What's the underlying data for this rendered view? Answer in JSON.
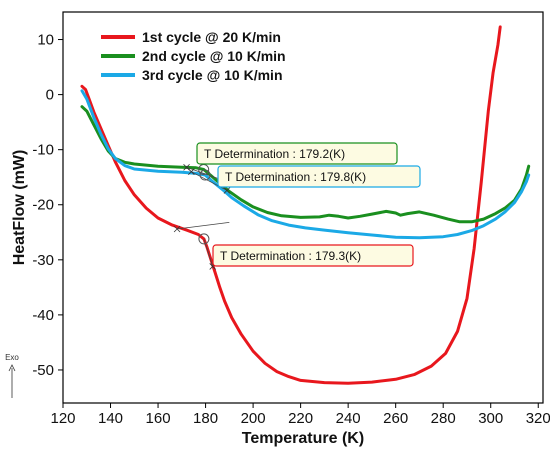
{
  "chart_data": {
    "type": "line",
    "xlabel": "Temperature (K)",
    "ylabel": "HeatFlow (mW)",
    "xlim": [
      120,
      322
    ],
    "ylim": [
      -56,
      15
    ],
    "x_ticks": [
      120,
      140,
      160,
      180,
      200,
      220,
      240,
      260,
      280,
      300,
      320
    ],
    "y_ticks": [
      10,
      0,
      -10,
      -20,
      -30,
      -40,
      -50
    ],
    "grid": false,
    "legend_position": "top-left",
    "exo_label": "Exo",
    "series": [
      {
        "name": "1st cycle @ 20 K/min",
        "color": "#e8171d",
        "points": [
          [
            128,
            1.5
          ],
          [
            129.5,
            0.9
          ],
          [
            131,
            -0.8
          ],
          [
            133,
            -3.2
          ],
          [
            136,
            -6.2
          ],
          [
            139,
            -9.2
          ],
          [
            142,
            -12.2
          ],
          [
            146,
            -15.6
          ],
          [
            150,
            -18.2
          ],
          [
            155,
            -20.6
          ],
          [
            160,
            -22.4
          ],
          [
            166,
            -23.7
          ],
          [
            172,
            -24.6
          ],
          [
            177,
            -25.4
          ],
          [
            179.3,
            -26.2
          ],
          [
            180.5,
            -27.6
          ],
          [
            182,
            -29.6
          ],
          [
            184,
            -32.3
          ],
          [
            186,
            -35
          ],
          [
            188,
            -37.5
          ],
          [
            191,
            -40.5
          ],
          [
            195,
            -43.5
          ],
          [
            200,
            -46.6
          ],
          [
            205,
            -48.8
          ],
          [
            210,
            -50.3
          ],
          [
            215,
            -51.2
          ],
          [
            220,
            -51.9
          ],
          [
            230,
            -52.3
          ],
          [
            240,
            -52.4
          ],
          [
            250,
            -52.2
          ],
          [
            260,
            -51.7
          ],
          [
            268,
            -50.8
          ],
          [
            275,
            -49.3
          ],
          [
            281,
            -47
          ],
          [
            286,
            -43
          ],
          [
            290,
            -37
          ],
          [
            293,
            -28
          ],
          [
            296,
            -16
          ],
          [
            299,
            -3
          ],
          [
            301,
            4
          ],
          [
            303,
            9
          ],
          [
            304,
            12.3
          ]
        ]
      },
      {
        "name": "2nd cycle @ 10 K/min",
        "color": "#1a8f1f",
        "points": [
          [
            128,
            -2.2
          ],
          [
            130,
            -3
          ],
          [
            133,
            -5.5
          ],
          [
            136,
            -8
          ],
          [
            139,
            -10.2
          ],
          [
            142,
            -11.6
          ],
          [
            146,
            -12.3
          ],
          [
            150,
            -12.6
          ],
          [
            160,
            -13
          ],
          [
            170,
            -13.2
          ],
          [
            176,
            -13.3
          ],
          [
            179.2,
            -13.6
          ],
          [
            182,
            -14.6
          ],
          [
            186,
            -16.1
          ],
          [
            190,
            -17.6
          ],
          [
            195,
            -19.1
          ],
          [
            200,
            -20.4
          ],
          [
            206,
            -21.4
          ],
          [
            212,
            -22
          ],
          [
            220,
            -22.3
          ],
          [
            228,
            -22.2
          ],
          [
            232,
            -21.9
          ],
          [
            236,
            -22.1
          ],
          [
            240,
            -22.4
          ],
          [
            245,
            -22.1
          ],
          [
            250,
            -21.7
          ],
          [
            256,
            -21.2
          ],
          [
            260,
            -21.5
          ],
          [
            262,
            -21.9
          ],
          [
            265,
            -21.6
          ],
          [
            270,
            -21.3
          ],
          [
            276,
            -21.9
          ],
          [
            282,
            -22.6
          ],
          [
            287,
            -23.1
          ],
          [
            292,
            -23.1
          ],
          [
            297,
            -22.6
          ],
          [
            302,
            -21.6
          ],
          [
            306,
            -20.6
          ],
          [
            310,
            -19.2
          ],
          [
            313,
            -17.1
          ],
          [
            315,
            -14.6
          ],
          [
            316,
            -13
          ]
        ]
      },
      {
        "name": "3rd cycle @ 10 K/min",
        "color": "#1ba9e6",
        "points": [
          [
            128,
            0.7
          ],
          [
            130,
            -0.8
          ],
          [
            133,
            -4.2
          ],
          [
            136,
            -7.2
          ],
          [
            139,
            -9.8
          ],
          [
            142,
            -11.6
          ],
          [
            146,
            -12.9
          ],
          [
            150,
            -13.5
          ],
          [
            160,
            -13.9
          ],
          [
            170,
            -14.1
          ],
          [
            176,
            -14.3
          ],
          [
            179.8,
            -14.6
          ],
          [
            183,
            -15.8
          ],
          [
            187,
            -17.2
          ],
          [
            191,
            -18.7
          ],
          [
            196,
            -20.2
          ],
          [
            202,
            -21.8
          ],
          [
            208,
            -22.9
          ],
          [
            215,
            -23.7
          ],
          [
            222,
            -24.2
          ],
          [
            230,
            -24.6
          ],
          [
            240,
            -25.1
          ],
          [
            250,
            -25.5
          ],
          [
            260,
            -25.9
          ],
          [
            270,
            -26
          ],
          [
            280,
            -25.8
          ],
          [
            286,
            -25.4
          ],
          [
            292,
            -24.7
          ],
          [
            297,
            -23.8
          ],
          [
            302,
            -22.6
          ],
          [
            306,
            -21.3
          ],
          [
            310,
            -19.6
          ],
          [
            313,
            -17.6
          ],
          [
            315,
            -15.8
          ],
          [
            316,
            -14.6
          ]
        ]
      }
    ],
    "annotations": [
      {
        "label": "T Determination :  179.2(K)",
        "x": 179.2,
        "y": -13.6,
        "color": "#1a8f1f"
      },
      {
        "label": "T Determination :  179.8(K)",
        "x": 179.8,
        "y": -14.6,
        "color": "#1ba9e6"
      },
      {
        "label": "T Determination :  179.3(K)",
        "x": 179.3,
        "y": -26.2,
        "color": "#e8171d"
      }
    ]
  }
}
